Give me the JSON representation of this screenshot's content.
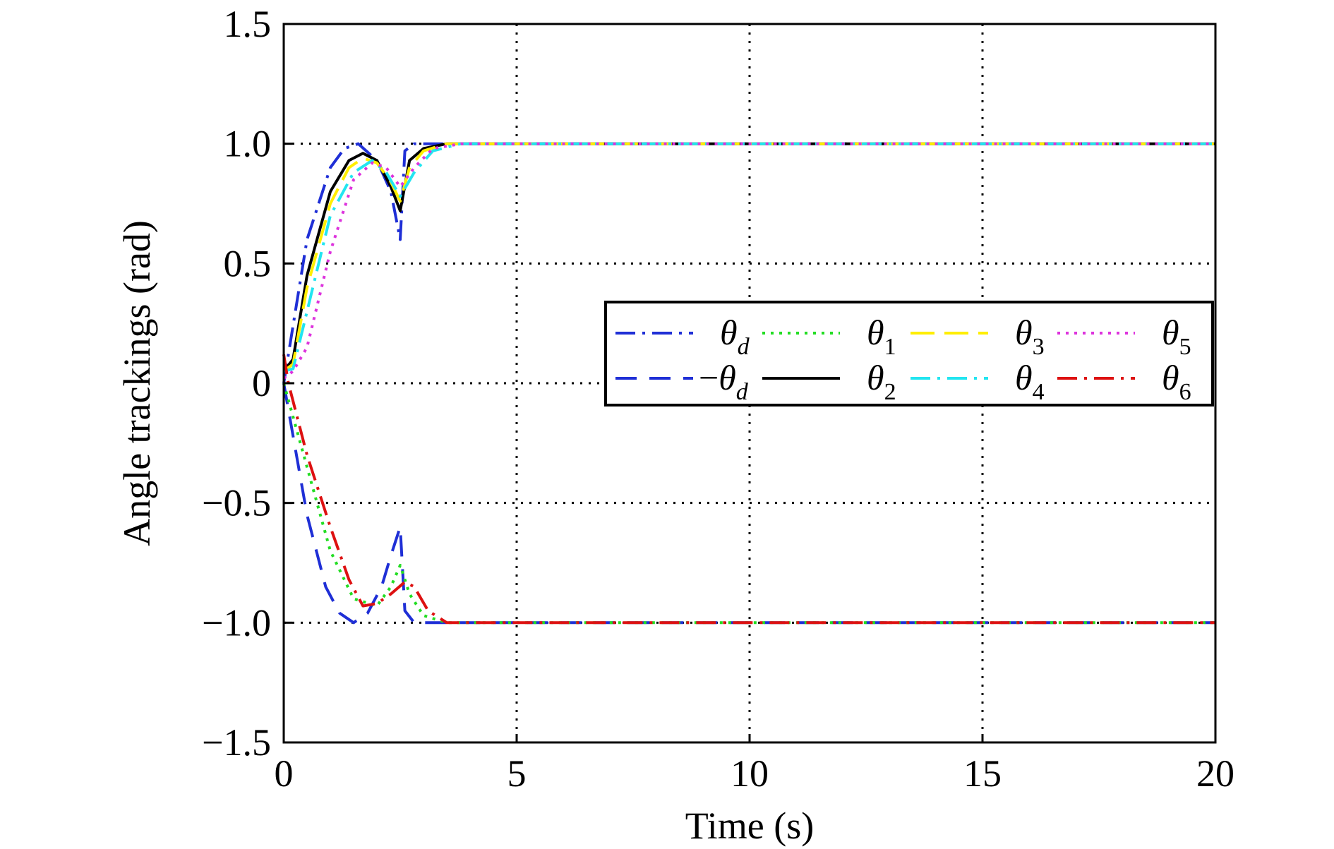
{
  "chart_data": {
    "type": "line",
    "title": "",
    "xlabel": "Time (s)",
    "ylabel": "Angle trackings (rad)",
    "xlim": [
      0,
      20
    ],
    "ylim": [
      -1.5,
      1.5
    ],
    "xticks": [
      0,
      5,
      10,
      15,
      20
    ],
    "xtick_labels": [
      "0",
      "5",
      "10",
      "15",
      "20"
    ],
    "yticks": [
      1.5,
      1.0,
      0.5,
      0,
      -0.5,
      -1.0,
      -1.5
    ],
    "ytick_labels": [
      "1.5",
      "1.0",
      "0.5",
      "0",
      "−0.5",
      "−1.0",
      "−1.5"
    ],
    "grid": true,
    "legend_position": "right, upper-middle",
    "series": [
      {
        "name": "θd",
        "label_main": "θ",
        "label_sub": "d",
        "label_prefix": "",
        "color": "#1f2fd6",
        "style": "dashdot",
        "x": [
          0,
          0.5,
          1.0,
          1.3,
          1.6,
          2.0,
          2.3,
          2.5,
          2.6,
          2.8,
          3.0,
          20
        ],
        "y": [
          0,
          0.6,
          0.9,
          0.98,
          1.0,
          0.93,
          0.8,
          0.6,
          0.97,
          1.0,
          1.0,
          1.0
        ]
      },
      {
        "name": "−θd",
        "label_main": "θ",
        "label_sub": "d",
        "label_prefix": "−",
        "color": "#1f2fd6",
        "style": "dash",
        "x": [
          0,
          0.5,
          0.9,
          1.2,
          1.5,
          1.8,
          2.1,
          2.3,
          2.5,
          2.6,
          2.8,
          20
        ],
        "y": [
          0,
          -0.55,
          -0.85,
          -0.96,
          -1.0,
          -0.96,
          -0.85,
          -0.72,
          -0.6,
          -0.95,
          -1.0,
          -1.0
        ]
      },
      {
        "name": "θ1",
        "label_main": "θ",
        "label_sub": "1",
        "label_prefix": "",
        "color": "#22dd22",
        "style": "dot",
        "x": [
          0,
          0.5,
          1.0,
          1.5,
          2.0,
          2.3,
          2.5,
          2.7,
          3.0,
          3.5,
          4.0,
          20
        ],
        "y": [
          0,
          -0.35,
          -0.7,
          -0.9,
          -0.93,
          -0.85,
          -0.76,
          -0.88,
          -0.97,
          -1.0,
          -1.0,
          -1.0
        ]
      },
      {
        "name": "θ2",
        "label_main": "θ",
        "label_sub": "2",
        "label_prefix": "",
        "color": "#000000",
        "style": "solid",
        "x": [
          0,
          0.2,
          0.5,
          1.0,
          1.4,
          1.7,
          2.0,
          2.3,
          2.5,
          2.7,
          3.0,
          3.5,
          4.0,
          20
        ],
        "y": [
          0.05,
          0.1,
          0.45,
          0.8,
          0.93,
          0.96,
          0.93,
          0.82,
          0.72,
          0.93,
          0.98,
          1.0,
          1.0,
          1.0
        ]
      },
      {
        "name": "θ3",
        "label_main": "θ",
        "label_sub": "3",
        "label_prefix": "",
        "color": "#ffee00",
        "style": "longdash",
        "x": [
          0,
          0.2,
          0.5,
          1.0,
          1.4,
          1.7,
          2.0,
          2.3,
          2.5,
          2.7,
          3.0,
          3.5,
          4.0,
          20
        ],
        "y": [
          0.05,
          0.08,
          0.4,
          0.75,
          0.9,
          0.94,
          0.92,
          0.84,
          0.76,
          0.9,
          0.97,
          1.0,
          1.0,
          1.0
        ]
      },
      {
        "name": "θ4",
        "label_main": "θ",
        "label_sub": "4",
        "label_prefix": "",
        "color": "#22e5f0",
        "style": "dashdot",
        "x": [
          0,
          0.2,
          0.5,
          1.0,
          1.5,
          1.9,
          2.2,
          2.5,
          2.8,
          3.2,
          3.8,
          20
        ],
        "y": [
          0.05,
          0.06,
          0.3,
          0.7,
          0.88,
          0.93,
          0.88,
          0.78,
          0.88,
          0.97,
          1.0,
          1.0
        ]
      },
      {
        "name": "θ5",
        "label_main": "θ",
        "label_sub": "5",
        "label_prefix": "",
        "color": "#dd33dd",
        "style": "dot",
        "x": [
          0,
          0.2,
          0.5,
          1.0,
          1.5,
          1.9,
          2.2,
          2.5,
          2.8,
          3.2,
          3.8,
          20
        ],
        "y": [
          0.02,
          0.05,
          0.15,
          0.55,
          0.85,
          0.92,
          0.9,
          0.82,
          0.9,
          0.98,
          1.0,
          1.0
        ]
      },
      {
        "name": "θ6",
        "label_main": "θ",
        "label_sub": "6",
        "label_prefix": "",
        "color": "#dd1111",
        "style": "dashdot",
        "x": [
          0,
          0.1,
          0.5,
          1.0,
          1.4,
          1.7,
          2.0,
          2.3,
          2.6,
          2.8,
          3.1,
          3.5,
          4.0,
          20
        ],
        "y": [
          0.12,
          0.0,
          -0.3,
          -0.6,
          -0.82,
          -0.93,
          -0.92,
          -0.88,
          -0.83,
          -0.85,
          -0.95,
          -1.0,
          -1.0,
          -1.0
        ]
      }
    ]
  }
}
